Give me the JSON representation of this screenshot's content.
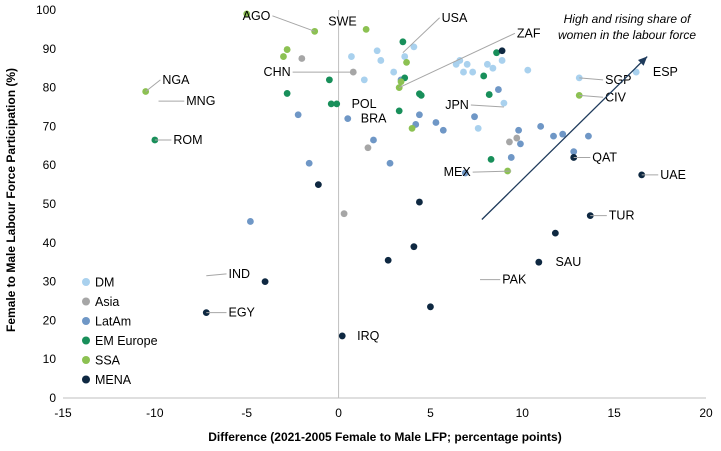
{
  "chart_data": {
    "type": "scatter",
    "xlabel": "Difference (2021-2005 Female to Male LFP; percentage points)",
    "ylabel": "Female to Male Labour Force Participation (%)",
    "xlim": [
      -15,
      20
    ],
    "ylim": [
      0,
      100
    ],
    "xticks": [
      -15,
      -10,
      -5,
      0,
      5,
      10,
      15,
      20
    ],
    "yticks": [
      0,
      10,
      20,
      30,
      40,
      50,
      60,
      70,
      80,
      90,
      100
    ],
    "grid": false,
    "legend_position": "bottom-left",
    "annotation": {
      "lines": [
        "High and rising share of",
        "women  in the labour force"
      ],
      "arrow_from": [
        7.8,
        46
      ],
      "arrow_to": [
        16.8,
        88
      ]
    },
    "series": [
      {
        "name": "DM",
        "color": "#a9d1ee",
        "points": [
          [
            0.7,
            88
          ],
          [
            1.4,
            82
          ],
          [
            2.1,
            89.5
          ],
          [
            2.3,
            87
          ],
          [
            3.0,
            84
          ],
          [
            3.6,
            88
          ],
          [
            4.1,
            90.5
          ],
          [
            6.4,
            86
          ],
          [
            6.6,
            87
          ],
          [
            6.8,
            84
          ],
          [
            7.0,
            86
          ],
          [
            7.3,
            84
          ],
          [
            7.6,
            69.5
          ],
          [
            8.1,
            86
          ],
          [
            8.4,
            85
          ],
          [
            8.9,
            87
          ],
          [
            9.0,
            76
          ],
          [
            10.3,
            84.5
          ],
          [
            13.1,
            82.5
          ],
          [
            16.2,
            84
          ]
        ],
        "labels": [
          {
            "text": "USA",
            "point": [
              3.5,
              89
            ],
            "anchor": [
              5.5,
              98
            ]
          },
          {
            "text": "JPN",
            "point": [
              9.0,
              75
            ],
            "anchor": [
              7.2,
              75.5
            ]
          },
          {
            "text": "SGP",
            "point": [
              13.1,
              82.5
            ],
            "anchor": [
              14.4,
              82
            ]
          },
          {
            "text": "ESP",
            "point": [
              16.2,
              84
            ],
            "anchor": [
              17.0,
              84
            ]
          }
        ]
      },
      {
        "name": "Asia",
        "color": "#a6a6a6",
        "points": [
          [
            -2.0,
            87.5
          ],
          [
            0.3,
            47.5
          ],
          [
            0.8,
            84
          ],
          [
            1.6,
            64.5
          ],
          [
            9.3,
            66
          ],
          [
            9.7,
            67
          ]
        ],
        "labels": [
          {
            "text": "CHN",
            "point": [
              0.8,
              84
            ],
            "anchor": [
              -2.5,
              84
            ]
          },
          {
            "text": "MNG",
            "point": [
              -9.8,
              76.5
            ],
            "anchor": [
              -8.4,
              76.5
            ]
          },
          {
            "text": "IND",
            "point": [
              -7.2,
              31.5
            ],
            "anchor": [
              -6.1,
              32
            ]
          },
          {
            "text": "PAK",
            "point": [
              7.7,
              30.5
            ],
            "anchor": [
              8.8,
              30.5
            ]
          }
        ]
      },
      {
        "name": "LatAm",
        "color": "#6f97c6",
        "points": [
          [
            -4.8,
            45.5
          ],
          [
            -2.2,
            73
          ],
          [
            -1.6,
            60.5
          ],
          [
            0.5,
            72
          ],
          [
            1.9,
            66.5
          ],
          [
            2.8,
            60.5
          ],
          [
            3.4,
            82
          ],
          [
            4.2,
            70.5
          ],
          [
            4.4,
            73
          ],
          [
            5.3,
            71
          ],
          [
            5.7,
            69
          ],
          [
            6.9,
            58
          ],
          [
            7.4,
            72.5
          ],
          [
            9.8,
            69
          ],
          [
            9.9,
            65.5
          ],
          [
            11.0,
            70
          ],
          [
            11.7,
            67.5
          ],
          [
            12.2,
            68
          ],
          [
            12.8,
            63.5
          ],
          [
            13.6,
            67.5
          ],
          [
            9.4,
            62
          ],
          [
            8.7,
            79.5
          ]
        ],
        "labels": [
          {
            "text": "BRA",
            "point": [
              0.5,
              72
            ],
            "anchor": [
              1.1,
              72
            ]
          }
        ]
      },
      {
        "name": "EM Europe",
        "color": "#188f5a",
        "points": [
          [
            -10.0,
            66.5
          ],
          [
            -2.8,
            78.5
          ],
          [
            -0.5,
            82
          ],
          [
            -0.4,
            75.8
          ],
          [
            -0.1,
            75.8
          ],
          [
            3.3,
            74
          ],
          [
            3.5,
            91.8
          ],
          [
            3.6,
            82.5
          ],
          [
            4.4,
            78.4
          ],
          [
            4.5,
            78
          ],
          [
            7.9,
            83
          ],
          [
            8.3,
            61.5
          ],
          [
            8.2,
            78.2
          ],
          [
            8.6,
            89
          ]
        ],
        "labels": [
          {
            "text": "ROM",
            "point": [
              -10.0,
              66.5
            ],
            "anchor": [
              -9.1,
              66.5
            ]
          },
          {
            "text": "POL",
            "point": [
              -0.1,
              75.8
            ],
            "anchor": [
              0.6,
              75.8
            ]
          }
        ]
      },
      {
        "name": "SSA",
        "color": "#8cc152",
        "points": [
          [
            -10.5,
            79
          ],
          [
            -5.0,
            99
          ],
          [
            -3.0,
            88
          ],
          [
            -2.8,
            89.8
          ],
          [
            -1.3,
            94.5
          ],
          [
            1.5,
            95
          ],
          [
            3.3,
            80
          ],
          [
            3.4,
            81.5
          ],
          [
            3.7,
            86.5
          ],
          [
            4.0,
            69.5
          ],
          [
            9.2,
            58.5
          ],
          [
            13.1,
            78
          ]
        ],
        "labels": [
          {
            "text": "NGA",
            "point": [
              -10.5,
              79
            ],
            "anchor": [
              -9.7,
              82
            ]
          },
          {
            "text": "AGO",
            "point": [
              -1.3,
              94.5
            ],
            "anchor": [
              -3.6,
              98.5
            ]
          },
          {
            "text": "SWE",
            "point": [
              1.5,
              95
            ],
            "anchor": [
              1.1,
              97
            ]
          },
          {
            "text": "ZAF",
            "point": [
              3.3,
              80
            ],
            "anchor": [
              9.6,
              94
            ]
          },
          {
            "text": "CIV",
            "point": [
              13.1,
              78
            ],
            "anchor": [
              14.4,
              77.5
            ]
          }
        ]
      },
      {
        "name": "MENA",
        "color": "#0e2841",
        "points": [
          [
            -7.2,
            22
          ],
          [
            -4.0,
            30
          ],
          [
            -1.1,
            55
          ],
          [
            0.2,
            16
          ],
          [
            2.7,
            35.5
          ],
          [
            4.1,
            39
          ],
          [
            4.4,
            50.5
          ],
          [
            5.0,
            23.5
          ],
          [
            8.9,
            89.5
          ],
          [
            10.9,
            35
          ],
          [
            11.8,
            42.5
          ],
          [
            12.8,
            62
          ],
          [
            13.7,
            47
          ],
          [
            16.5,
            57.5
          ]
        ],
        "labels": [
          {
            "text": "EGY",
            "point": [
              -7.2,
              22
            ],
            "anchor": [
              -6.1,
              22
            ]
          },
          {
            "text": "IRQ",
            "point": [
              0.2,
              16
            ],
            "anchor": [
              0.9,
              16
            ]
          },
          {
            "text": "MEX",
            "point": [
              9.4,
              58.5
            ],
            "anchor": [
              7.3,
              58.2
            ]
          },
          {
            "text": "SAU",
            "point": [
              10.9,
              35
            ],
            "anchor": [
              11.7,
              35
            ]
          },
          {
            "text": "QAT",
            "point": [
              12.8,
              62
            ],
            "anchor": [
              13.7,
              62
            ]
          },
          {
            "text": "TUR",
            "point": [
              13.7,
              47
            ],
            "anchor": [
              14.6,
              47
            ]
          },
          {
            "text": "UAE",
            "point": [
              16.5,
              57.5
            ],
            "anchor": [
              17.4,
              57.5
            ]
          }
        ]
      }
    ]
  }
}
